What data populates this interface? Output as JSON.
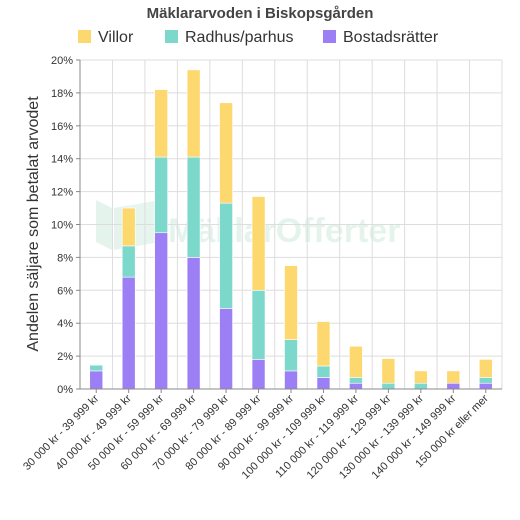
{
  "chart_data": {
    "type": "bar",
    "stacked": true,
    "title": "Mäklararvoden i Biskopsgården",
    "ylabel": "Andelen säljare som betalat arvodet",
    "ylim": [
      0,
      20
    ],
    "y_ticks": [
      "0%",
      "2%",
      "4%",
      "6%",
      "8%",
      "10%",
      "12%",
      "14%",
      "16%",
      "18%",
      "20%"
    ],
    "grid": true,
    "legend_position": "top",
    "categories": [
      "30 000 kr - 39 999 kr",
      "40 000 kr - 49 999 kr",
      "50 000 kr - 59 999 kr",
      "60 000 kr - 69 999 kr",
      "70 000 kr - 79 999 kr",
      "80 000 kr - 89 999 kr",
      "90 000 kr - 99 999 kr",
      "100 000 kr - 109 999 kr",
      "110 000 kr - 119 999 kr",
      "120 000 kr - 129 999 kr",
      "130 000 kr - 139 999 kr",
      "140 000 kr - 149 999 kr",
      "150 000 kr eller mer"
    ],
    "series": [
      {
        "name": "Bostadsrätter",
        "color": "#9d7ff5",
        "values": [
          1.1,
          6.8,
          9.5,
          8.0,
          4.9,
          1.8,
          1.1,
          0.7,
          0.35,
          0,
          0,
          0.35,
          0.35
        ]
      },
      {
        "name": "Radhus/parhus",
        "color": "#7dd8cc",
        "values": [
          0.35,
          1.9,
          4.6,
          6.1,
          6.4,
          4.2,
          1.9,
          0.7,
          0.35,
          0.35,
          0.35,
          0,
          0.35
        ]
      },
      {
        "name": "Villor",
        "color": "#fdd86e",
        "values": [
          0,
          2.3,
          4.1,
          5.3,
          6.1,
          5.7,
          4.5,
          2.7,
          1.9,
          1.5,
          0.75,
          0.75,
          1.1
        ]
      }
    ],
    "legend_order": [
      "Villor",
      "Radhus/parhus",
      "Bostadsrätter"
    ]
  },
  "watermark": {
    "text": "MäklarOfferter"
  }
}
